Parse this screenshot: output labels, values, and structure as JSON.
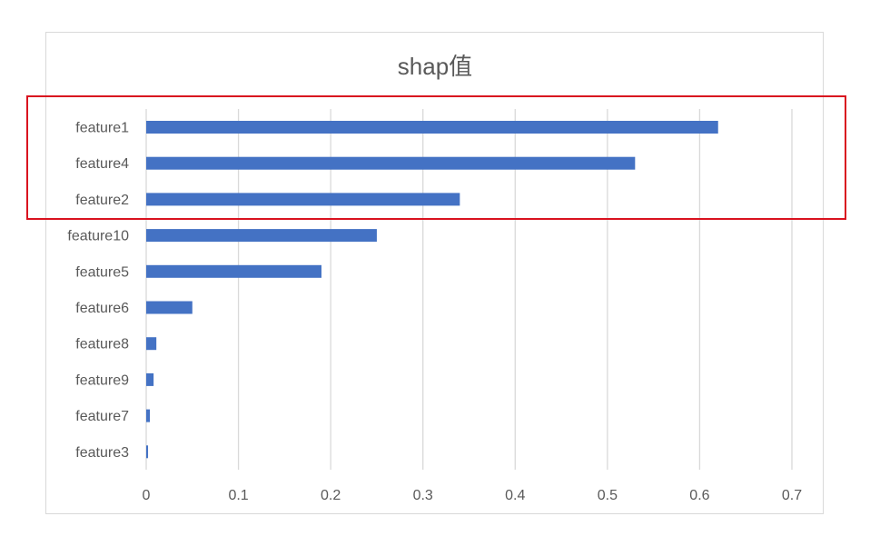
{
  "chart_data": {
    "type": "bar",
    "orientation": "horizontal",
    "title": "shap值",
    "categories": [
      "feature1",
      "feature4",
      "feature2",
      "feature10",
      "feature5",
      "feature6",
      "feature8",
      "feature9",
      "feature7",
      "feature3"
    ],
    "values": [
      0.62,
      0.53,
      0.34,
      0.25,
      0.19,
      0.05,
      0.011,
      0.008,
      0.004,
      0.002
    ],
    "xlim": [
      0,
      0.7
    ],
    "xticks": [
      "0",
      "0.1",
      "0.2",
      "0.3",
      "0.4",
      "0.5",
      "0.6",
      "0.7"
    ],
    "grid": "vertical",
    "legend": "none",
    "bar_color": "#4472c4",
    "highlight": {
      "categories": [
        "feature1",
        "feature4",
        "feature2"
      ],
      "color": "#d9121f"
    }
  }
}
